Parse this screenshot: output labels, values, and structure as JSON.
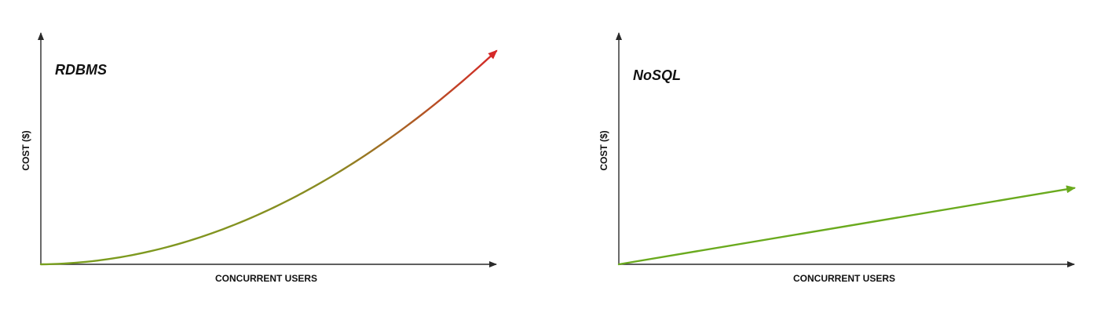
{
  "chart_data": [
    {
      "type": "line",
      "title": "RDBMS",
      "xlabel": "CONCURRENT USERS",
      "ylabel": "COST ($)",
      "curve": "quadratic",
      "x": [
        0,
        0.1,
        0.2,
        0.3,
        0.4,
        0.5,
        0.6,
        0.7,
        0.8,
        0.9,
        1.0
      ],
      "y": [
        0,
        0.011,
        0.04,
        0.087,
        0.152,
        0.235,
        0.336,
        0.455,
        0.592,
        0.746,
        0.922
      ],
      "xlim": [
        0,
        1
      ],
      "ylim": [
        0,
        1
      ],
      "grid": false,
      "colors": {
        "start": "#78a01e",
        "end": "#d62828"
      }
    },
    {
      "type": "line",
      "title": "NoSQL",
      "xlabel": "CONCURRENT USERS",
      "ylabel": "COST ($)",
      "curve": "linear",
      "x": [
        0,
        1.0
      ],
      "y": [
        0,
        0.33
      ],
      "xlim": [
        0,
        1
      ],
      "ylim": [
        0,
        1
      ],
      "grid": false,
      "colors": {
        "start": "#6aaa1e",
        "end": "#6aaa1e"
      }
    }
  ]
}
